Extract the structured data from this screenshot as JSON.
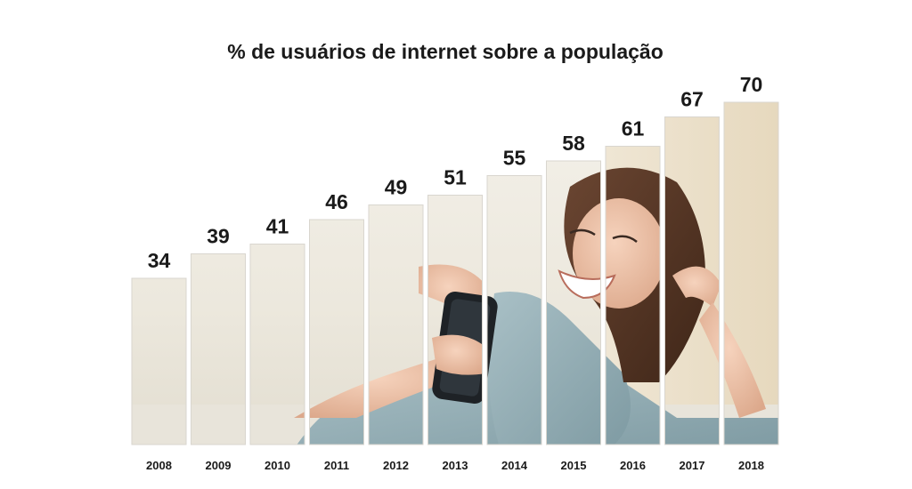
{
  "chart_data": {
    "type": "bar",
    "title": "% de usuários de internet sobre a população",
    "categories": [
      "2008",
      "2009",
      "2010",
      "2011",
      "2012",
      "2013",
      "2014",
      "2015",
      "2016",
      "2017",
      "2018"
    ],
    "values": [
      34,
      39,
      41,
      46,
      49,
      51,
      55,
      58,
      61,
      67,
      70
    ],
    "xlabel": "",
    "ylabel": "",
    "ylim": [
      0,
      70
    ],
    "grid": false,
    "legend": "none",
    "bar_fill": "photo of a smiling woman holding a phone on a sofa",
    "data_labels": true
  }
}
